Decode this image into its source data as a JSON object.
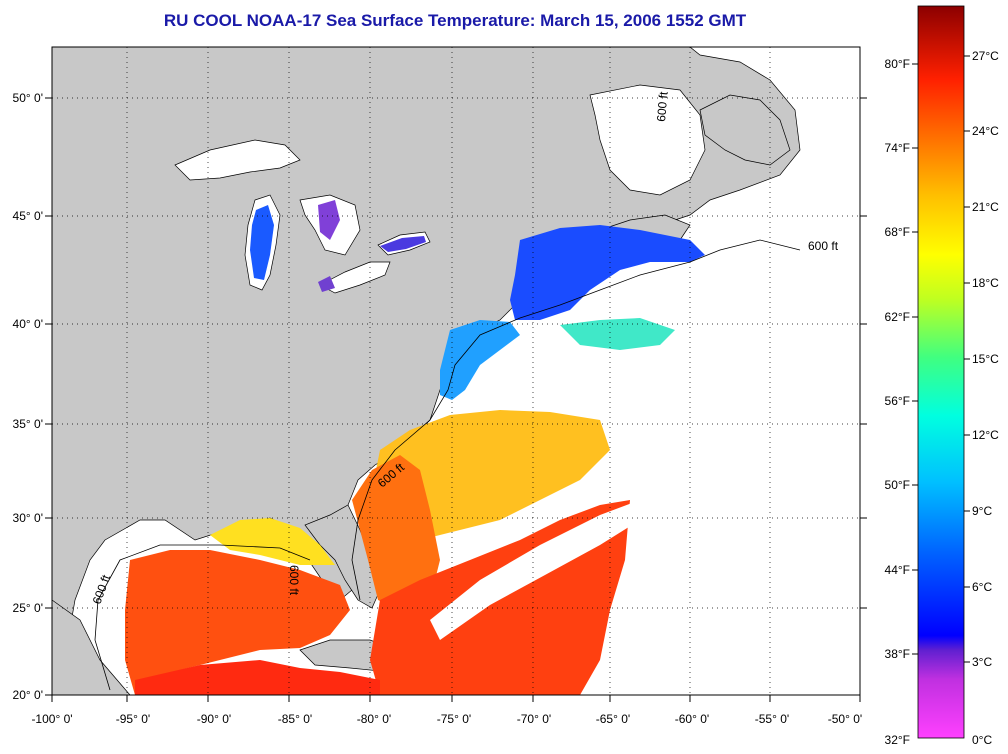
{
  "title": "RU COOL  NOAA-17  Sea Surface Temperature:  March 15, 2006 1552 GMT",
  "axes": {
    "lon_labels": [
      "-100° 0'",
      "-95° 0'",
      "-90° 0'",
      "-85° 0'",
      "-80° 0'",
      "-75° 0'",
      "-70° 0'",
      "-65° 0'",
      "-60° 0'",
      "-55° 0'",
      "-50° 0'"
    ],
    "lat_labels": [
      "50° 0'",
      "45° 0'",
      "40° 0'",
      "35° 0'",
      "30° 0'",
      "25° 0'",
      "20° 0'"
    ]
  },
  "isobath_label": "600 ft",
  "colorbar": {
    "fahrenheit": [
      "80°F",
      "74°F",
      "68°F",
      "62°F",
      "56°F",
      "50°F",
      "44°F",
      "38°F",
      "32°F"
    ],
    "celsius": [
      "27°C",
      "24°C",
      "21°C",
      "18°C",
      "15°C",
      "12°C",
      "9°C",
      "6°C",
      "3°C",
      "0°C"
    ]
  },
  "colors": {
    "land": "#c8c8c8",
    "ocean_no_data": "#ffffff",
    "title": "#1a1aa8"
  }
}
